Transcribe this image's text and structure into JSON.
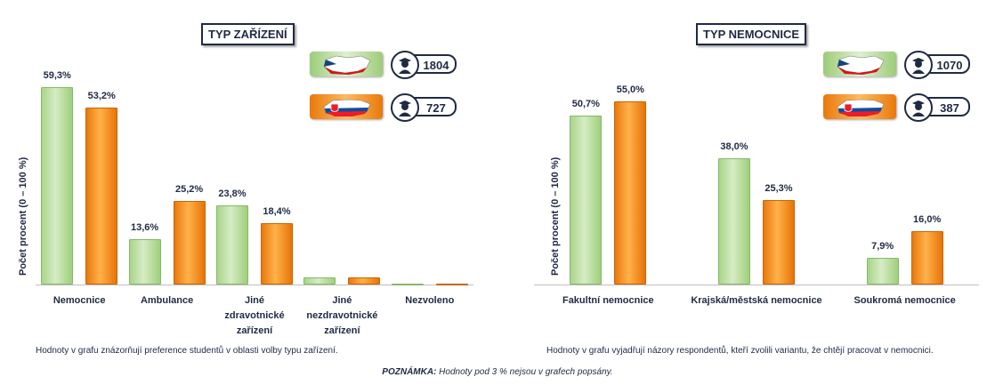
{
  "chart_data": [
    {
      "type": "bar",
      "title": "TYP ZAŘÍZENÍ",
      "ylabel": "Počet procent  (0 – 100 %)",
      "ylim": [
        0,
        65
      ],
      "categories": [
        "Nemocnice",
        "Ambulance",
        "Jiné zdravotnické zařízení",
        "Jiné nezdravotnické zařízení",
        "Nezvoleno"
      ],
      "category_lines": [
        [
          "Nemocnice"
        ],
        [
          "Ambulance"
        ],
        [
          "Jiné",
          "zdravotnické",
          "zařízení"
        ],
        [
          "Jiné",
          "nezdravotnické",
          "zařízení"
        ],
        [
          "Nezvoleno"
        ]
      ],
      "series": [
        {
          "values": [
            59.3,
            13.6,
            23.8,
            2.2,
            0.3
          ],
          "labels": [
            "59,3%",
            "13,6%",
            "23,8%",
            "",
            ""
          ],
          "color": "#a9d58a"
        },
        {
          "values": [
            53.2,
            25.2,
            18.4,
            2.2,
            0.3
          ],
          "labels": [
            "53,2%",
            "25,2%",
            "18,4%",
            "",
            ""
          ],
          "color": "#f28a14"
        }
      ],
      "legend": [
        {
          "flag": "czech-flag-map-icon",
          "count": "1804",
          "box_color": "#a9d58a"
        },
        {
          "flag": "slovak-flag-map-icon",
          "count": "727",
          "box_color": "#f28a14"
        }
      ],
      "note": "Hodnoty v grafu znázorňují preference studentů v oblasti volby typu zařízení."
    },
    {
      "type": "bar",
      "title": "TYP NEMOCNICE",
      "ylabel": "Počet procent  (0 – 100 %)",
      "ylim": [
        0,
        65
      ],
      "categories": [
        "Fakultní nemocnice",
        "Krajská/městská nemocnice",
        "Soukromá nemocnice"
      ],
      "category_lines": [
        [
          "Fakultní nemocnice"
        ],
        [
          "Krajská/městská nemocnice"
        ],
        [
          "Soukromá nemocnice"
        ]
      ],
      "series": [
        {
          "values": [
            50.7,
            38.0,
            7.9
          ],
          "labels": [
            "50,7%",
            "38,0%",
            "7,9%"
          ],
          "color": "#a9d58a"
        },
        {
          "values": [
            55.0,
            25.3,
            16.0
          ],
          "labels": [
            "55,0%",
            "25,3%",
            "16,0%"
          ],
          "color": "#f28a14"
        }
      ],
      "legend": [
        {
          "flag": "czech-flag-map-icon",
          "count": "1070",
          "box_color": "#a9d58a"
        },
        {
          "flag": "slovak-flag-map-icon",
          "count": "387",
          "box_color": "#f28a14"
        }
      ],
      "note": "Hodnoty v grafu vyjadřují názory respondentů, kteří zvolili variantu, že chtějí pracovat v nemocnici."
    }
  ],
  "footnote": {
    "label": "POZNÁMKA:",
    "text": " Hodnoty pod 3 % nejsou v grafech popsány."
  }
}
